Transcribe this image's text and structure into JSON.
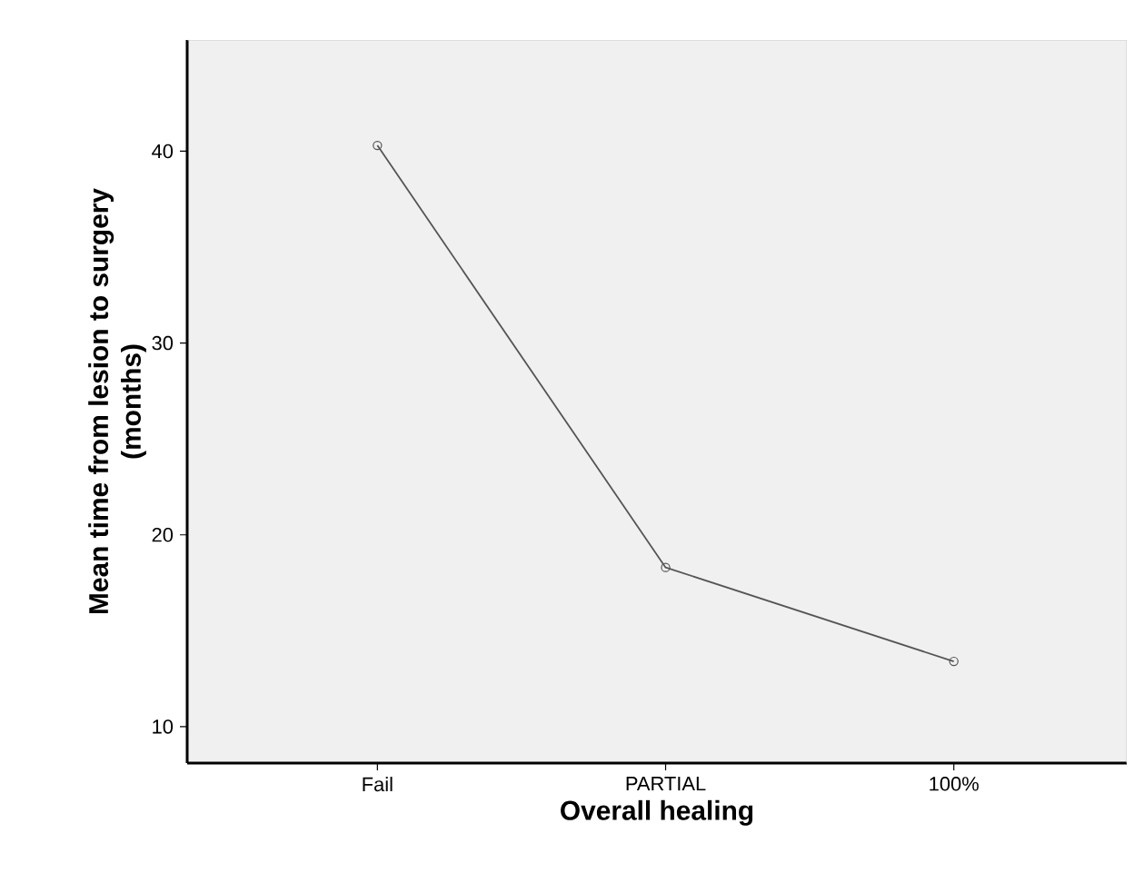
{
  "chart_data": {
    "type": "line",
    "xlabel": "Overall healing",
    "ylabel": "Mean time from lesion to surgery\n(months)",
    "categories": [
      "Fail",
      "PARTIAL",
      "100%"
    ],
    "series": [
      {
        "color": "#555555",
        "values": [
          40.3,
          18.3,
          13.4
        ]
      }
    ],
    "ylim": [
      8.1,
      45.8
    ],
    "yticks": [
      10,
      20,
      30,
      40
    ],
    "marker": "circle",
    "line_style": "solid",
    "grid": false
  }
}
